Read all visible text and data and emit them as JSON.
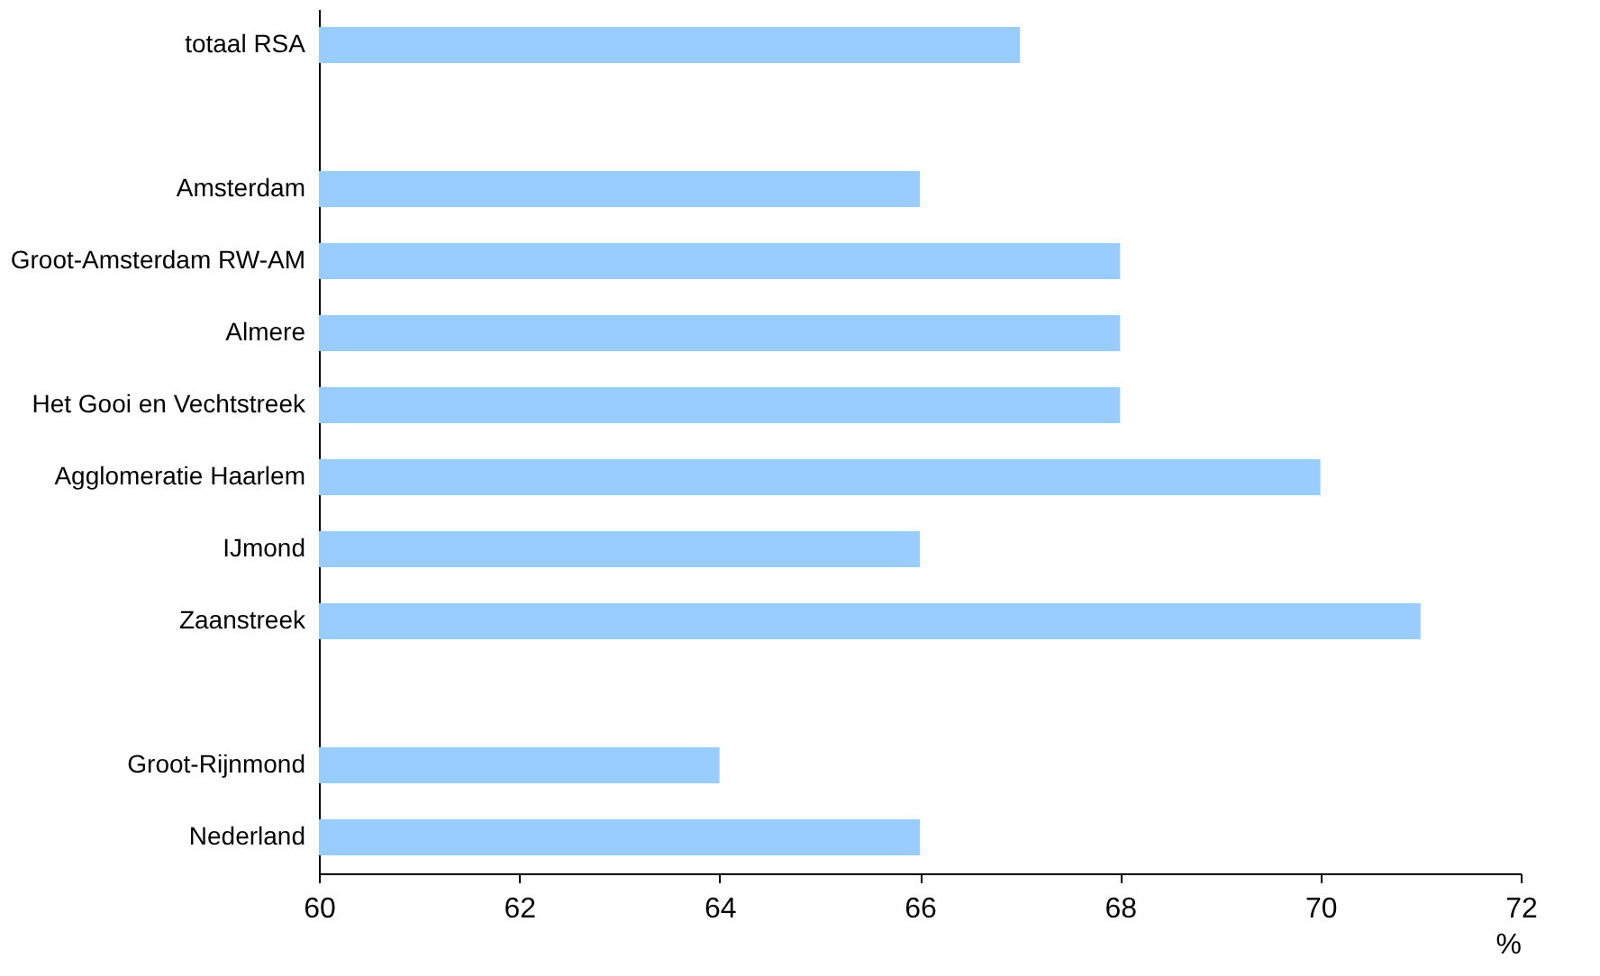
{
  "chart_data": {
    "type": "bar",
    "orientation": "horizontal",
    "categories": [
      "totaal RSA",
      null,
      "Amsterdam",
      "Groot-Amsterdam RW-AM",
      "Almere",
      "Het Gooi en Vechtstreek",
      "Agglomeratie Haarlem",
      "IJmond",
      "Zaanstreek",
      null,
      "Groot-Rijnmond",
      "Nederland"
    ],
    "values": [
      67,
      null,
      66,
      68,
      68,
      68,
      70,
      66,
      71,
      null,
      64,
      66
    ],
    "color": "#99ccff",
    "xlabel": "%",
    "xlim": [
      60,
      72
    ],
    "xticks": [
      60,
      62,
      64,
      66,
      68,
      70,
      72
    ],
    "grid": false
  }
}
